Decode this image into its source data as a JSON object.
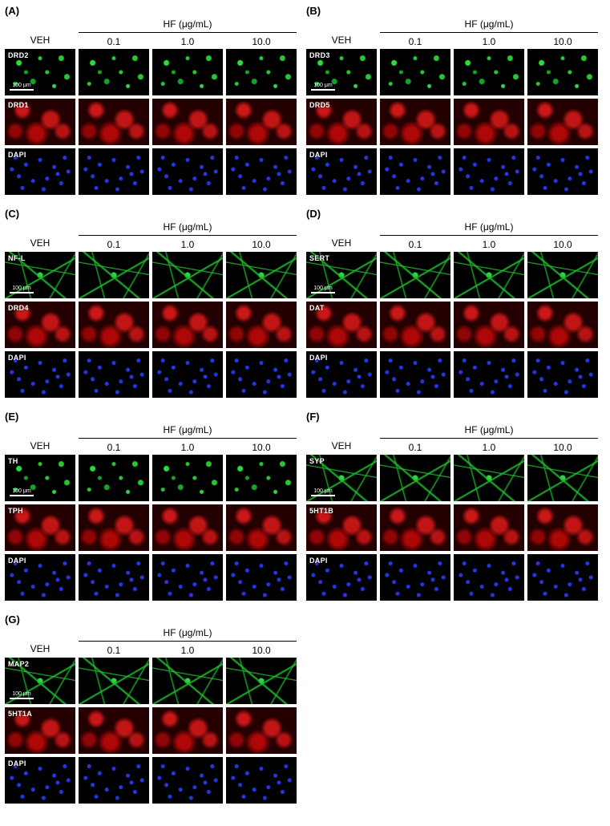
{
  "figure": {
    "background_color": "#ffffff",
    "text_color": "#000000",
    "micro_background": "#000000",
    "micro_label_color": "#ffffff",
    "scale_bar_color": "#ffffff",
    "font_family": "Arial",
    "panel_letter_fontsize_pt": 10,
    "header_fontsize_pt": 9,
    "micro_label_fontsize_pt": 7,
    "scale_text_fontsize_pt": 5,
    "colors": {
      "green": "#2fe83f",
      "red": "#ff1e1e",
      "blue": "#2a3cff"
    },
    "hf_header": "HF (μg/mL)",
    "veh_label": "VEH",
    "doses": [
      "0.1",
      "1.0",
      "10.0"
    ],
    "scale_label": "100 μm",
    "panels": [
      {
        "letter": "(A)",
        "position": "left",
        "rows": [
          {
            "label": "DRD2",
            "channel": "green",
            "style": "green",
            "scale": true
          },
          {
            "label": "DRD1",
            "channel": "red",
            "style": "red"
          },
          {
            "label": "DAPI",
            "channel": "blue",
            "style": "blue"
          }
        ]
      },
      {
        "letter": "(B)",
        "position": "right",
        "rows": [
          {
            "label": "DRD3",
            "channel": "green",
            "style": "green",
            "scale": true
          },
          {
            "label": "DRD5",
            "channel": "red",
            "style": "red"
          },
          {
            "label": "DAPI",
            "channel": "blue",
            "style": "blue"
          }
        ]
      },
      {
        "letter": "(C)",
        "position": "left",
        "rows": [
          {
            "label": "NF-L",
            "channel": "green",
            "style": "green-fiber",
            "scale": true
          },
          {
            "label": "DRD4",
            "channel": "red",
            "style": "red"
          },
          {
            "label": "DAPI",
            "channel": "blue",
            "style": "blue"
          }
        ]
      },
      {
        "letter": "(D)",
        "position": "right",
        "rows": [
          {
            "label": "SERT",
            "channel": "green",
            "style": "green-fiber",
            "scale": true
          },
          {
            "label": "DAT",
            "channel": "red",
            "style": "red"
          },
          {
            "label": "DAPI",
            "channel": "blue",
            "style": "blue"
          }
        ]
      },
      {
        "letter": "(E)",
        "position": "left",
        "rows": [
          {
            "label": "TH",
            "channel": "green",
            "style": "green",
            "scale": true
          },
          {
            "label": "TPH",
            "channel": "red",
            "style": "red"
          },
          {
            "label": "DAPI",
            "channel": "blue",
            "style": "blue"
          }
        ]
      },
      {
        "letter": "(F)",
        "position": "right",
        "rows": [
          {
            "label": "SYP",
            "channel": "green",
            "style": "green-fiber",
            "scale": true
          },
          {
            "label": "5HT1B",
            "channel": "red",
            "style": "red"
          },
          {
            "label": "DAPI",
            "channel": "blue",
            "style": "blue"
          }
        ]
      },
      {
        "letter": "(G)",
        "position": "left",
        "rows": [
          {
            "label": "MAP2",
            "channel": "green",
            "style": "green-fiber",
            "scale": true
          },
          {
            "label": "5HT1A",
            "channel": "red",
            "style": "red"
          },
          {
            "label": "DAPI",
            "channel": "blue",
            "style": "blue"
          }
        ]
      }
    ]
  }
}
